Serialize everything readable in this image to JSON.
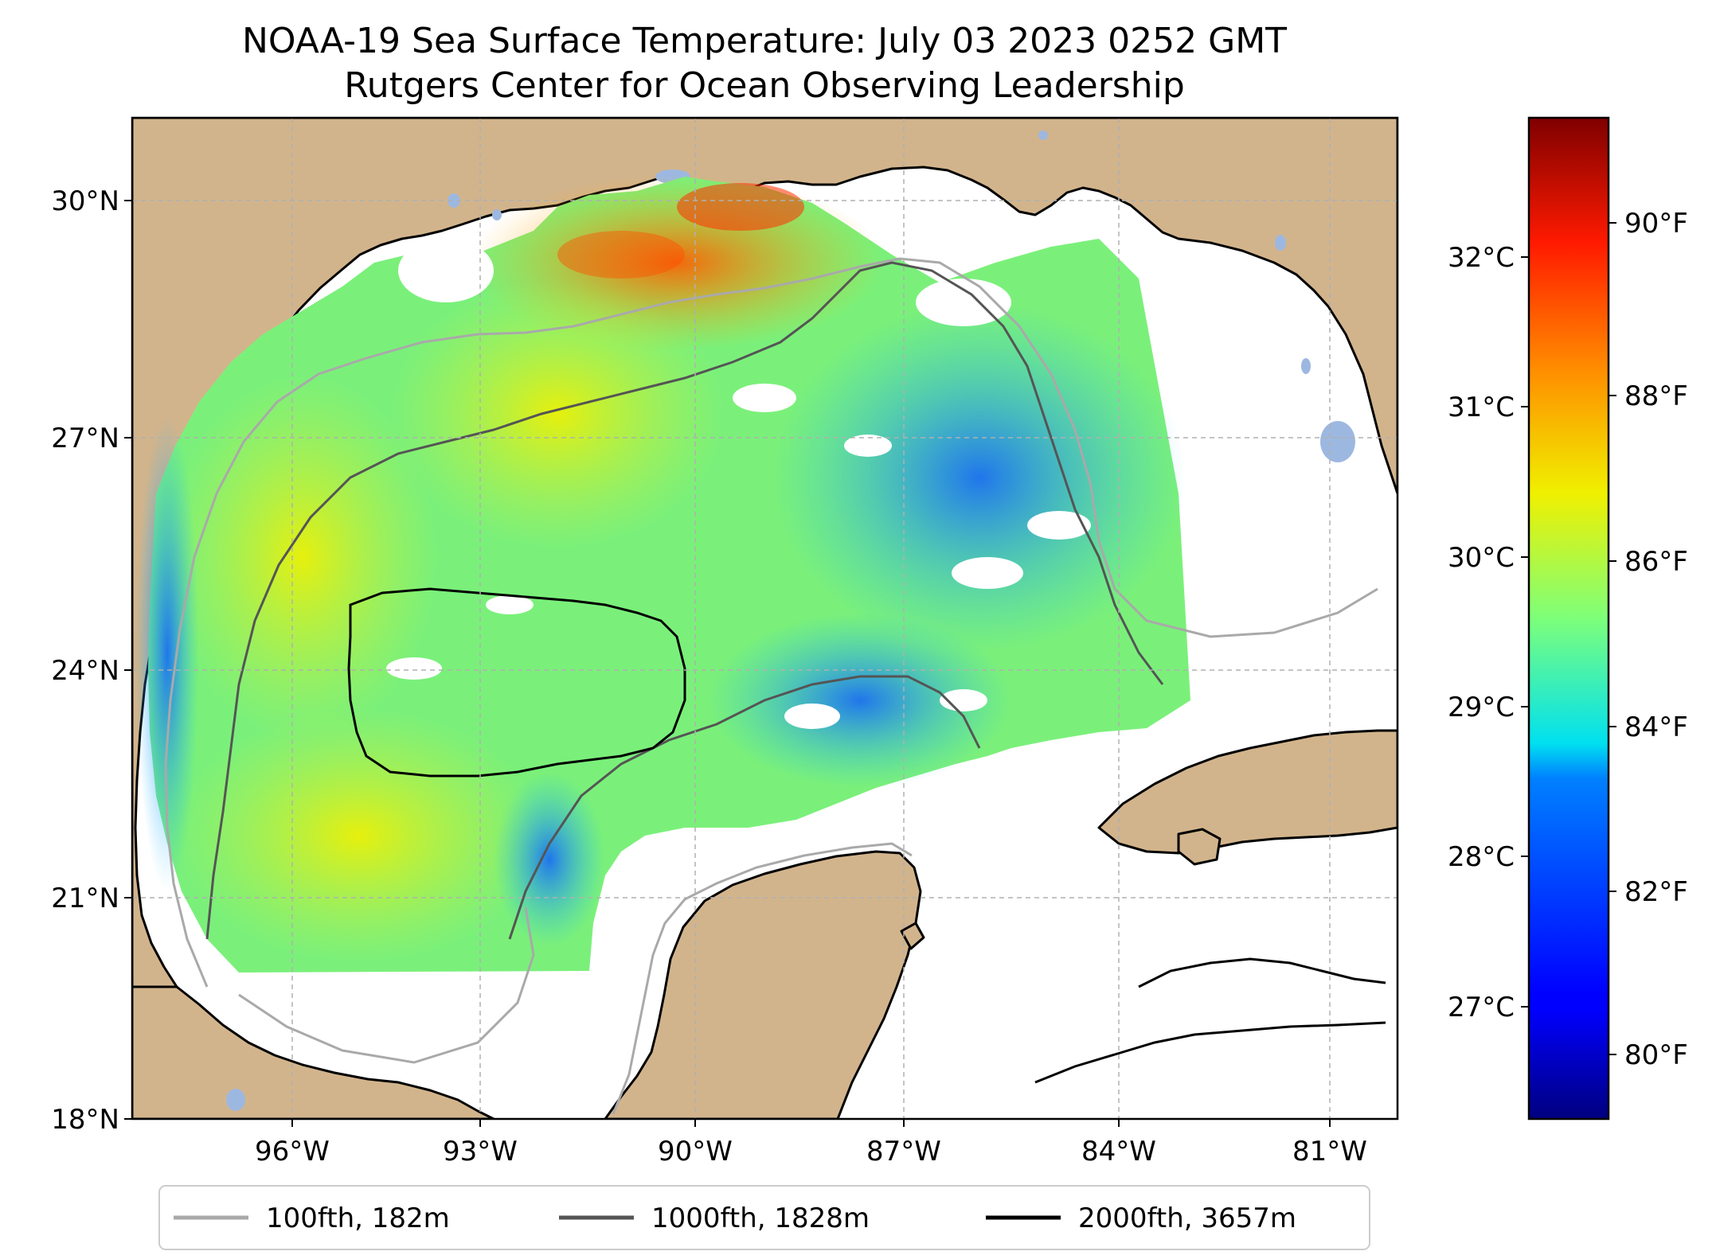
{
  "title": {
    "line1": "NOAA-19 Sea Surface Temperature: July 03 2023 0252 GMT",
    "line2": "Rutgers Center for Ocean Observing Leadership"
  },
  "map": {
    "lat_range": [
      18,
      31.5
    ],
    "lon_range": [
      -98.3,
      -80.3
    ],
    "lat_ticks": [
      {
        "value": 18,
        "label": "18°N"
      },
      {
        "value": 21,
        "label": "21°N"
      },
      {
        "value": 24,
        "label": "24°N"
      },
      {
        "value": 27,
        "label": "27°N"
      },
      {
        "value": 30,
        "label": "30°N"
      }
    ],
    "lon_ticks": [
      {
        "value": -96,
        "label": "96°W"
      },
      {
        "value": -93,
        "label": "93°W"
      },
      {
        "value": -90,
        "label": "90°W"
      },
      {
        "value": -87,
        "label": "87°W"
      },
      {
        "value": -84,
        "label": "84°W"
      },
      {
        "value": -81,
        "label": "81°W"
      }
    ],
    "grid": true,
    "colors": {
      "land": "#d2b48c",
      "lake": "#9db8e0",
      "coastline": "#000000",
      "grid": "#b0b0b0"
    }
  },
  "colorbar": {
    "colormap": "jet",
    "range_f": [
      79.2,
      91.5
    ],
    "celsius_ticks": [
      {
        "value": 27,
        "label": "27°C"
      },
      {
        "value": 28,
        "label": "28°C"
      },
      {
        "value": 29,
        "label": "29°C"
      },
      {
        "value": 30,
        "label": "30°C"
      },
      {
        "value": 31,
        "label": "31°C"
      },
      {
        "value": 32,
        "label": "32°C"
      }
    ],
    "fahrenheit_ticks": [
      {
        "value": 80,
        "label": "80°F"
      },
      {
        "value": 82,
        "label": "82°F"
      },
      {
        "value": 84,
        "label": "84°F"
      },
      {
        "value": 86,
        "label": "86°F"
      },
      {
        "value": 88,
        "label": "88°F"
      },
      {
        "value": 90,
        "label": "90°F"
      }
    ]
  },
  "legend": {
    "placement": "bottom-center",
    "items": [
      {
        "label": "100fth, 182m",
        "color": "#a9a9a9"
      },
      {
        "label": "1000fth, 1828m",
        "color": "#555555"
      },
      {
        "label": "2000fth, 3657m",
        "color": "#000000"
      }
    ]
  }
}
